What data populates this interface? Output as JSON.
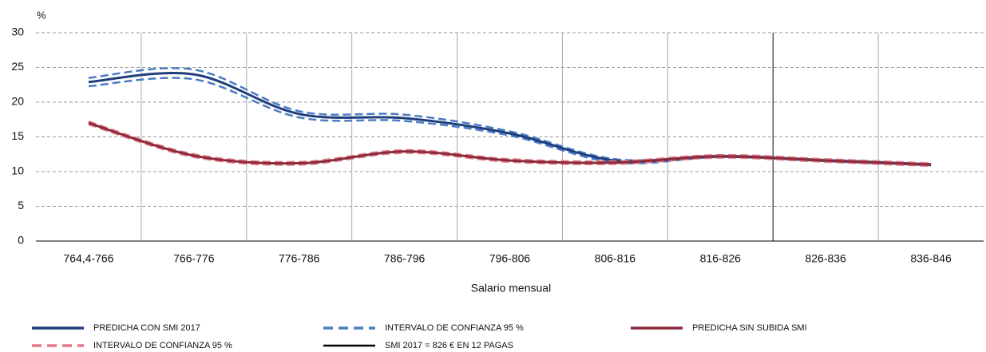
{
  "chart_data": {
    "type": "line",
    "y_unit": "%",
    "x_label": "Salario mensual",
    "categories": [
      "764,4-766",
      "766-776",
      "776-786",
      "786-796",
      "796-806",
      "806-816",
      "816-826",
      "826-836",
      "836-846"
    ],
    "ylim": [
      0,
      30
    ],
    "yticks": [
      0,
      5,
      10,
      15,
      20,
      25,
      30
    ],
    "grid": true,
    "series": [
      {
        "name": "PREDICHA CON SMI 2017",
        "color": "#1f3e7c",
        "dashed": false,
        "values": [
          22.9,
          24.0,
          18.3,
          17.7,
          15.5,
          11.6,
          12.2,
          11.6,
          11.0
        ]
      },
      {
        "name": "INTERVALO DE CONFIANZA 95 %",
        "color": "#4a7cc4",
        "dashed": true,
        "upper": [
          23.5,
          24.7,
          18.7,
          18.2,
          15.8,
          11.8,
          12.3,
          11.7,
          11.1
        ],
        "lower": [
          22.3,
          23.3,
          17.8,
          17.3,
          15.2,
          11.3,
          12.1,
          11.5,
          10.9
        ]
      },
      {
        "name": "PREDICHA SIN SUBIDA SMI",
        "color": "#8b2a3c",
        "dashed": false,
        "values": [
          17.0,
          12.3,
          11.2,
          12.9,
          11.6,
          11.3,
          12.2,
          11.6,
          11.0
        ]
      },
      {
        "name": "INTERVALO DE CONFIANZA 95 %",
        "color": "#e07a86",
        "dashed": true,
        "upper": [
          17.2,
          12.5,
          11.4,
          13.1,
          11.8,
          11.5,
          12.4,
          11.8,
          11.2
        ],
        "lower": [
          16.8,
          12.1,
          11.0,
          12.7,
          11.4,
          11.1,
          12.0,
          11.4,
          10.8
        ]
      }
    ],
    "vline": {
      "name": "SMI  2017 = 826 € EN 12 PAGAS",
      "color": "#000000",
      "before": "826-836"
    }
  }
}
